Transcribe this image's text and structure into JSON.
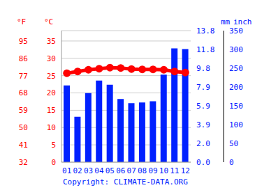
{
  "chart_data": {
    "type": "bar_line",
    "categories": [
      "01",
      "02",
      "03",
      "04",
      "05",
      "06",
      "07",
      "08",
      "09",
      "10",
      "11",
      "12"
    ],
    "series": [
      {
        "name": "mm",
        "type": "bar",
        "axis": "y2",
        "color": "#0020ff",
        "values": [
          204,
          121,
          184,
          217,
          206,
          168,
          157,
          159,
          162,
          233,
          303,
          301
        ]
      },
      {
        "name": "°C",
        "type": "line",
        "color": "#ff0000",
        "marker": "circle",
        "values": [
          25.7,
          26.2,
          26.7,
          27.0,
          27.3,
          27.2,
          26.9,
          26.8,
          26.8,
          26.7,
          26.2,
          25.9
        ]
      }
    ],
    "y_label": "°C",
    "ylim": [
      0,
      38
    ],
    "yticks": [
      0,
      5,
      10,
      15,
      20,
      25,
      30,
      35
    ],
    "y_alt_label": "°F",
    "y_alt_ticks": [
      {
        "value": 0,
        "label": "32"
      },
      {
        "value": 5,
        "label": "41"
      },
      {
        "value": 10,
        "label": "50"
      },
      {
        "value": 15,
        "label": "59"
      },
      {
        "value": 20,
        "label": "68"
      },
      {
        "value": 25,
        "label": "77"
      },
      {
        "value": 30,
        "label": "86"
      },
      {
        "value": 35,
        "label": "95"
      }
    ],
    "y2_label": "mm",
    "y2lim": [
      0,
      350
    ],
    "y2ticks": [
      0,
      50,
      100,
      150,
      200,
      250,
      300,
      350
    ],
    "y2_alt_label": "inch",
    "y2_alt_ticks": [
      {
        "value": 0,
        "label": "0.0"
      },
      {
        "value": 50,
        "label": "2.0"
      },
      {
        "value": 100,
        "label": "3.9"
      },
      {
        "value": 150,
        "label": "5.9"
      },
      {
        "value": 200,
        "label": "7.9"
      },
      {
        "value": 250,
        "label": "9.8"
      },
      {
        "value": 300,
        "label": "11.8"
      },
      {
        "value": 350,
        "label": "13.8"
      }
    ],
    "grid": true,
    "source": "Copyright: CLIMATE-DATA.ORG"
  }
}
